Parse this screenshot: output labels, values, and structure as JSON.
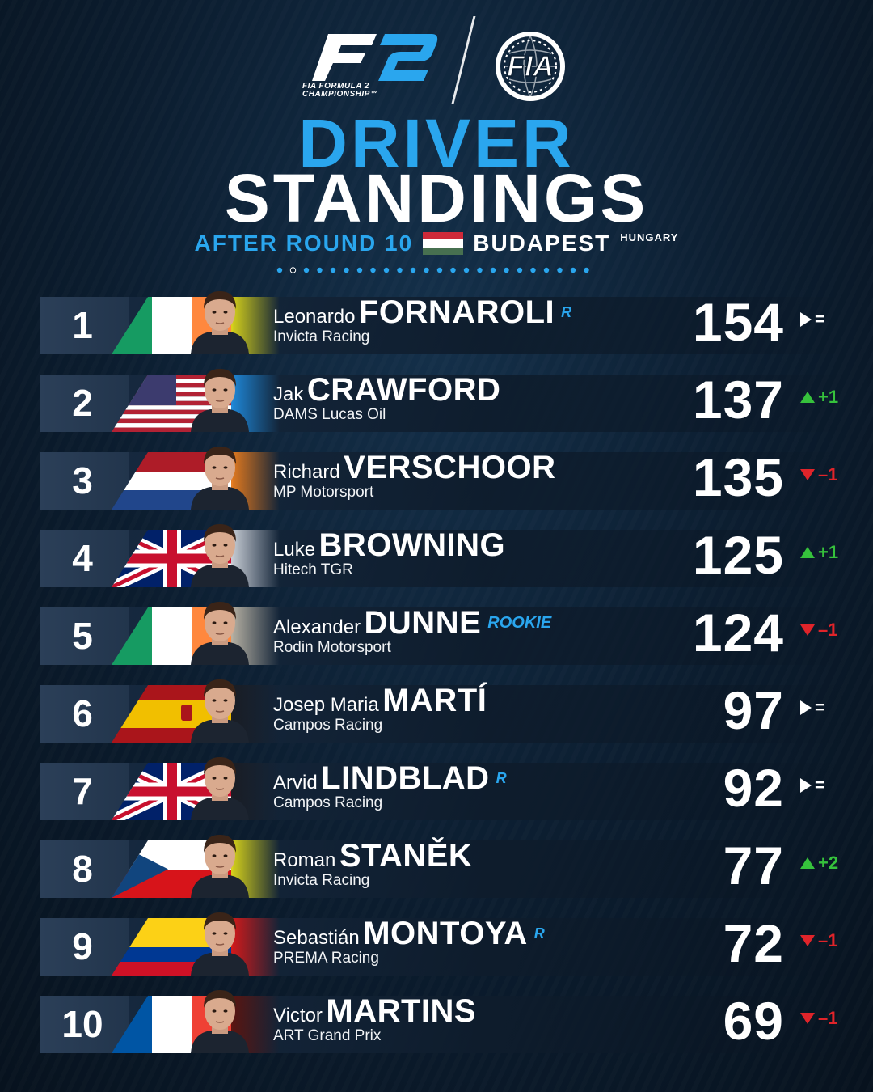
{
  "header": {
    "f2_logo_text": "F2",
    "f2_logo_sub_1": "FIA FORMULA 2",
    "f2_logo_sub_2": "CHAMPIONSHIP™",
    "fia_logo_text": "FIA",
    "title_line_1": "DRIVER",
    "title_line_2": "STANDINGS",
    "round_label": "AFTER ROUND 10",
    "city": "BUDAPEST",
    "country": "HUNGARY",
    "page_dots_count": 24,
    "page_dots_active": 1
  },
  "colors": {
    "accent_blue": "#2aa6ee",
    "up_green": "#36c23c",
    "down_red": "#e0242a"
  },
  "drivers": [
    {
      "pos": "1",
      "first": "Leonardo",
      "last": "FORNAROLI",
      "badge": "R",
      "team": "Invicta Racing",
      "points": "154",
      "change_dir": "same",
      "change": "=",
      "flag": "ireland-flag",
      "tint": "#d7d21a"
    },
    {
      "pos": "2",
      "first": "Jak",
      "last": "CRAWFORD",
      "badge": "",
      "team": "DAMS Lucas Oil",
      "points": "137",
      "change_dir": "up",
      "change": "+1",
      "flag": "usa-flag",
      "tint": "#1f88d8"
    },
    {
      "pos": "3",
      "first": "Richard",
      "last": "VERSCHOOR",
      "badge": "",
      "team": "MP Motorsport",
      "points": "135",
      "change_dir": "down",
      "change": "–1",
      "flag": "netherlands-flag",
      "tint": "#e47a1e"
    },
    {
      "pos": "4",
      "first": "Luke",
      "last": "BROWNING",
      "badge": "",
      "team": "Hitech TGR",
      "points": "125",
      "change_dir": "up",
      "change": "+1",
      "flag": "uk-flag",
      "tint": "#c9ced6"
    },
    {
      "pos": "5",
      "first": "Alexander",
      "last": "DUNNE",
      "badge": "ROOKIE",
      "team": "Rodin Motorsport",
      "points": "124",
      "change_dir": "down",
      "change": "–1",
      "flag": "ireland-flag",
      "tint": "#b7b1a3"
    },
    {
      "pos": "6",
      "first": "Josep Maria",
      "last": "MARTÍ",
      "badge": "",
      "team": "Campos Racing",
      "points": "97",
      "change_dir": "same",
      "change": "=",
      "flag": "spain-flag",
      "tint": "#1a1d24"
    },
    {
      "pos": "7",
      "first": "Arvid",
      "last": "LINDBLAD",
      "badge": "R",
      "team": "Campos Racing",
      "points": "92",
      "change_dir": "same",
      "change": "=",
      "flag": "uk-flag",
      "tint": "#1a1d24"
    },
    {
      "pos": "8",
      "first": "Roman",
      "last": "STANĚK",
      "badge": "",
      "team": "Invicta Racing",
      "points": "77",
      "change_dir": "up",
      "change": "+2",
      "flag": "czech-flag",
      "tint": "#d7d21a"
    },
    {
      "pos": "9",
      "first": "Sebastián",
      "last": "MONTOYA",
      "badge": "R",
      "team": "PREMA Racing",
      "points": "72",
      "change_dir": "down",
      "change": "–1",
      "flag": "colombia-flag",
      "tint": "#d31a1a"
    },
    {
      "pos": "10",
      "first": "Victor",
      "last": "MARTINS",
      "badge": "",
      "team": "ART Grand Prix",
      "points": "69",
      "change_dir": "down",
      "change": "–1",
      "flag": "france-flag",
      "tint": "#5a1510"
    }
  ]
}
